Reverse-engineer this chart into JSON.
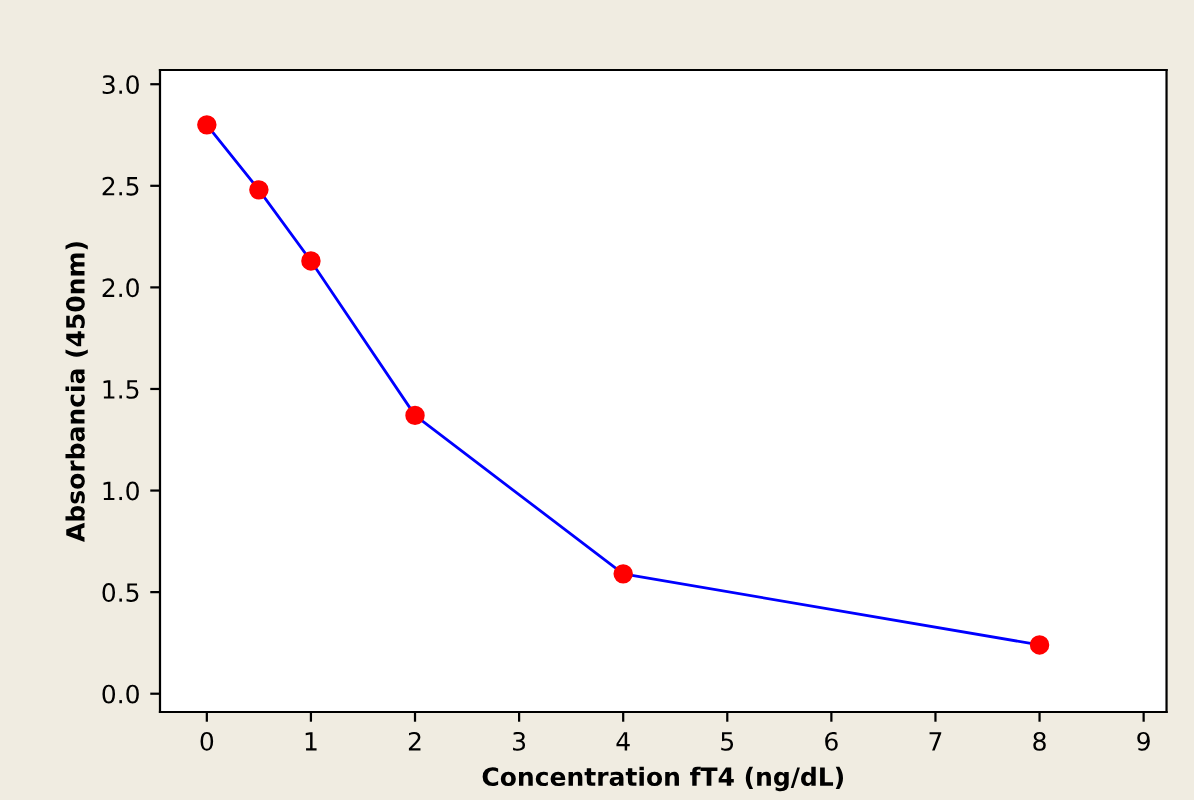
{
  "chart_data": {
    "type": "line",
    "xlabel": "Concentration fT4 (ng/dL)",
    "ylabel": "Absorbancia (450nm)",
    "x": [
      0,
      0.5,
      1,
      2,
      4,
      8
    ],
    "series": [
      {
        "color": "#0000ff",
        "colors": [
          "#ff0000",
          "#ff0000",
          "#ff0000",
          "#ff0000",
          "#ff0000",
          "#ff0000"
        ],
        "values": [
          2.8,
          2.48,
          2.13,
          1.37,
          0.59,
          0.24
        ]
      }
    ],
    "marker": "circle",
    "line_style": "solid",
    "grid": false,
    "legend": false,
    "xlim": [
      -0.45,
      9.22
    ],
    "xticks": [
      0,
      1,
      2,
      3,
      4,
      5,
      6,
      7,
      8,
      9
    ],
    "ylim": [
      -0.09,
      3.07
    ],
    "yticks": [
      {
        "value": 0,
        "label": "0.0"
      },
      {
        "value": 0.5,
        "label": "0.5"
      },
      {
        "value": 1,
        "label": "1.0"
      },
      {
        "value": 1.5,
        "label": "1.5"
      },
      {
        "value": 2,
        "label": "2.0"
      },
      {
        "value": 2.5,
        "label": "2.5"
      },
      {
        "value": 3,
        "label": "3.0"
      }
    ]
  }
}
